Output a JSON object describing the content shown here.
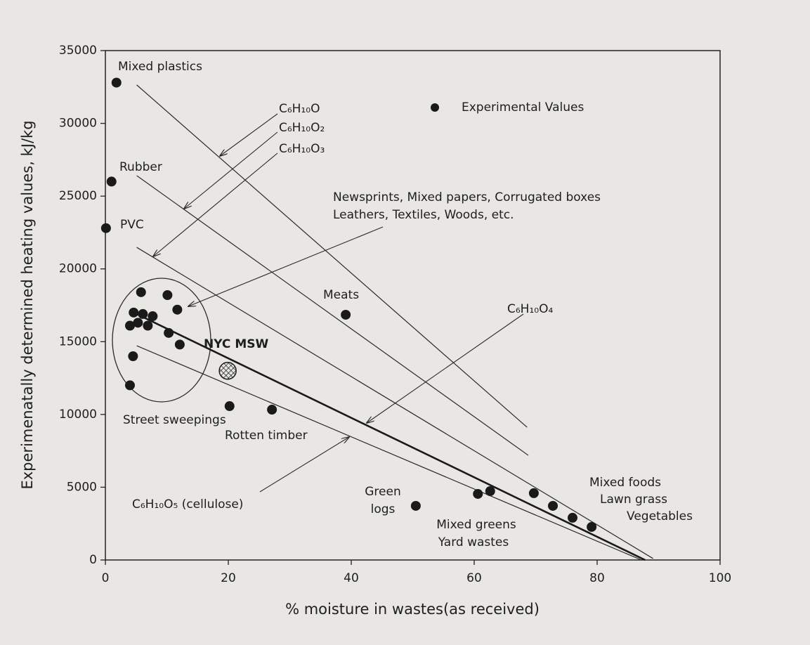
{
  "chart_data": {
    "type": "scatter",
    "x_label": "% moisture in wastes(as received)",
    "y_label": "Experimenatally determined heating values, kJ/kg",
    "xlim": [
      0,
      100
    ],
    "ylim": [
      0,
      35000
    ],
    "xticks": [
      0,
      20,
      40,
      60,
      80,
      100
    ],
    "yticks": [
      0,
      5000,
      10000,
      15000,
      20000,
      25000,
      30000,
      35000
    ],
    "grid": false,
    "legend": "top-right",
    "series": [
      {
        "name": "Experimental Values",
        "color": "#1a1a1a",
        "marker": "dot",
        "x": [
          1.8,
          1.0,
          0.1,
          5.8,
          10.1,
          11.7,
          4.6,
          6.1,
          7.7,
          5.3,
          4.0,
          6.9,
          10.3,
          12.1,
          4.5,
          4.0,
          39.1,
          20.2,
          27.1,
          50.5,
          60.6,
          62.6,
          69.7,
          72.8,
          76.0,
          79.1
        ],
        "values": [
          32800,
          26000,
          22800,
          18400,
          18200,
          17200,
          17000,
          16900,
          16750,
          16300,
          16100,
          16100,
          15600,
          14800,
          14000,
          12000,
          16850,
          10570,
          10330,
          3720,
          4540,
          4730,
          4590,
          3720,
          2900,
          2270
        ]
      },
      {
        "name": "NYC MSW",
        "color": "#1a1a1a",
        "marker": "hatched",
        "x": [
          19.9
        ],
        "values": [
          13000
        ]
      }
    ],
    "lines": [
      {
        "name": "C₆H₁₀O",
        "color": "#2a2a2a",
        "bold": false,
        "x": [
          5.1,
          68.6
        ],
        "values": [
          32640,
          9120
        ]
      },
      {
        "name": "C₆H₁₀O₂",
        "color": "#2a2a2a",
        "bold": false,
        "x": [
          5.1,
          68.8
        ],
        "values": [
          26410,
          7190
        ]
      },
      {
        "name": "C₆H₁₀O₃",
        "color": "#2a2a2a",
        "bold": false,
        "x": [
          5.1,
          89.1
        ],
        "values": [
          21480,
          100
        ]
      },
      {
        "name": "C₆H₁₀O₄",
        "color": "#1a1a1a",
        "bold": true,
        "x": [
          5.1,
          87.8
        ],
        "values": [
          16900,
          0
        ]
      },
      {
        "name": "C₆H₁₀O₅ (cellulose)",
        "color": "#2a2a2a",
        "bold": false,
        "x": [
          5.1,
          87.2
        ],
        "values": [
          14720,
          0
        ]
      }
    ],
    "annotations": [
      "Mixed plastics",
      "Rubber",
      "PVC",
      "Meats",
      "Street sweepings",
      "Rotten timber",
      "Green",
      "logs",
      "Mixed greens",
      "Yard wastes",
      "Mixed foods",
      "Lawn grass",
      "Vegetables",
      "Newsprints, Mixed papers, Corrugated boxes",
      "Leathers, Textiles, Woods, etc."
    ]
  }
}
